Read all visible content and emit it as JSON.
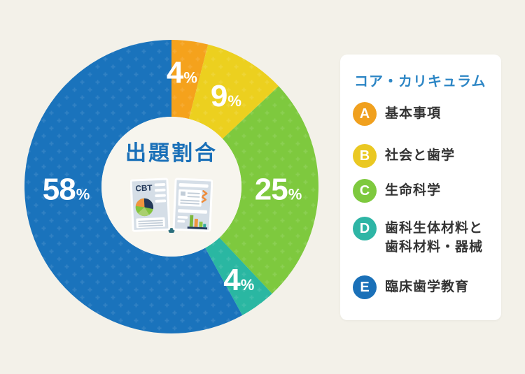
{
  "colors": {
    "background": "#f3f1e9",
    "hole": "#f7f5ee",
    "panel": "#ffffff",
    "pattern_overlay": "#ffffff",
    "legend_title": "#2d86c5",
    "center_title": "#1a70b8",
    "text": "#333333"
  },
  "chart_data": {
    "type": "pie",
    "subtype": "donut",
    "title": "出題割合",
    "unit": "%",
    "direction": "clockwise",
    "start_angle_deg": 0,
    "legend_position": "right",
    "categories": [
      "A 基本事項",
      "B 社会と歯学",
      "C 生命科学",
      "D 歯科生体材料と歯科材料・器械",
      "E 臨床歯学教育"
    ],
    "values": [
      4,
      9,
      25,
      4,
      58
    ],
    "colors": [
      "#f5a21c",
      "#ecd01f",
      "#7ec93e",
      "#2ab7a2",
      "#1a73bc"
    ],
    "slice_ids": [
      "A",
      "B",
      "C",
      "D",
      "E"
    ],
    "labels": [
      {
        "text": "4",
        "angle": 5,
        "radius": 165
      },
      {
        "text": "9",
        "angle": 30.6,
        "radius": 152
      },
      {
        "text": "25",
        "angle": 91,
        "radius": 152
      },
      {
        "text": "4",
        "angle": 144,
        "radius": 163
      },
      {
        "text": "58",
        "angle": 269,
        "radius": 151
      }
    ],
    "geometry": {
      "outer_radius": 210,
      "inner_radius": 100,
      "center": 210
    }
  },
  "center": {
    "title": "出題割合",
    "book_tag": "CBT"
  },
  "legend_panel": {
    "title": "コア・カリキュラム",
    "items": [
      {
        "letter": "A",
        "label": "基本事項",
        "color": "#f0a01e"
      },
      {
        "letter": "B",
        "label": "社会と歯学",
        "color": "#eac822"
      },
      {
        "letter": "C",
        "label": "生命科学",
        "color": "#7ec93e"
      },
      {
        "letter": "D",
        "label": "歯科生体材料と\n歯科材料・器械",
        "color": "#2eb5a5"
      },
      {
        "letter": "E",
        "label": "臨床歯学教育",
        "color": "#1a70b8"
      }
    ]
  }
}
